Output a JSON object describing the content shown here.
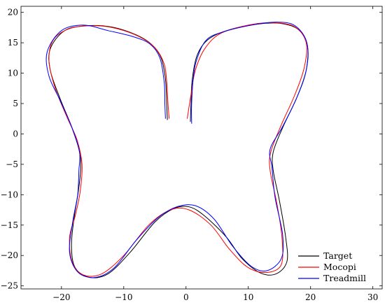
{
  "chart_data": {
    "type": "line",
    "title": "",
    "xlabel": "",
    "ylabel": "",
    "xlim": [
      -26.5,
      31.5
    ],
    "ylim": [
      -25.5,
      21
    ],
    "x_ticks": [
      -20,
      -10,
      0,
      10,
      20,
      30
    ],
    "y_ticks": [
      -25,
      -20,
      -15,
      -10,
      -5,
      0,
      5,
      10,
      15,
      20
    ],
    "x_tick_labels": [
      "−20",
      "−10",
      "0",
      "10",
      "20",
      "30"
    ],
    "y_tick_labels": [
      "−25",
      "−20",
      "−15",
      "−10",
      "−5",
      "0",
      "5",
      "10",
      "15",
      "20"
    ],
    "grid": false,
    "legend_position": "bottom-right",
    "series": [
      {
        "name": "Target",
        "color": "#000000",
        "points": [
          [
            -3.0,
            2.3
          ],
          [
            -3.1,
            5.0
          ],
          [
            -3.3,
            9.0
          ],
          [
            -4.0,
            12.5
          ],
          [
            -5.5,
            14.7
          ],
          [
            -8.0,
            16.3
          ],
          [
            -12.0,
            17.6
          ],
          [
            -16.0,
            17.8
          ],
          [
            -19.5,
            17.0
          ],
          [
            -21.8,
            14.0
          ],
          [
            -21.8,
            10.5
          ],
          [
            -20.3,
            6.0
          ],
          [
            -18.5,
            1.5
          ],
          [
            -17.2,
            -2.5
          ],
          [
            -16.9,
            -5.5
          ],
          [
            -17.3,
            -9.5
          ],
          [
            -18.0,
            -14.0
          ],
          [
            -18.4,
            -18.5
          ],
          [
            -17.8,
            -22.0
          ],
          [
            -15.5,
            -23.6
          ],
          [
            -12.5,
            -23.0
          ],
          [
            -9.0,
            -19.5
          ],
          [
            -5.0,
            -14.5
          ],
          [
            -2.0,
            -12.3
          ],
          [
            0.5,
            -12.0
          ],
          [
            3.0,
            -13.5
          ],
          [
            6.5,
            -17.0
          ],
          [
            9.0,
            -20.5
          ],
          [
            12.0,
            -22.9
          ],
          [
            14.5,
            -23.0
          ],
          [
            16.2,
            -21.0
          ],
          [
            16.0,
            -17.0
          ],
          [
            15.0,
            -11.0
          ],
          [
            14.0,
            -6.0
          ],
          [
            14.0,
            -3.0
          ],
          [
            15.5,
            1.0
          ],
          [
            17.8,
            6.0
          ],
          [
            19.3,
            10.5
          ],
          [
            19.5,
            14.5
          ],
          [
            18.0,
            17.2
          ],
          [
            15.0,
            18.2
          ],
          [
            11.0,
            18.0
          ],
          [
            6.5,
            17.0
          ],
          [
            3.5,
            15.5
          ],
          [
            1.8,
            13.0
          ],
          [
            1.0,
            9.0
          ],
          [
            0.8,
            5.0
          ],
          [
            0.7,
            2.0
          ]
        ]
      },
      {
        "name": "Mocopi",
        "color": "#ff0000",
        "points": [
          [
            -2.7,
            2.5
          ],
          [
            -2.9,
            5.0
          ],
          [
            -3.1,
            8.5
          ],
          [
            -3.5,
            11.5
          ],
          [
            -5.0,
            14.2
          ],
          [
            -7.5,
            16.0
          ],
          [
            -11.0,
            17.3
          ],
          [
            -14.5,
            17.8
          ],
          [
            -18.5,
            17.4
          ],
          [
            -21.3,
            15.5
          ],
          [
            -22.0,
            12.0
          ],
          [
            -21.0,
            7.5
          ],
          [
            -19.0,
            2.5
          ],
          [
            -17.5,
            -1.0
          ],
          [
            -16.7,
            -5.0
          ],
          [
            -17.0,
            -9.5
          ],
          [
            -17.8,
            -13.5
          ],
          [
            -18.7,
            -17.0
          ],
          [
            -18.3,
            -21.0
          ],
          [
            -16.5,
            -23.2
          ],
          [
            -13.5,
            -23.0
          ],
          [
            -10.0,
            -20.0
          ],
          [
            -6.0,
            -15.0
          ],
          [
            -2.5,
            -12.5
          ],
          [
            0.5,
            -12.5
          ],
          [
            4.0,
            -15.0
          ],
          [
            7.0,
            -19.0
          ],
          [
            10.0,
            -22.0
          ],
          [
            13.0,
            -22.8
          ],
          [
            15.3,
            -21.5
          ],
          [
            15.4,
            -17.0
          ],
          [
            14.6,
            -11.5
          ],
          [
            13.5,
            -6.0
          ],
          [
            13.6,
            -3.0
          ],
          [
            15.3,
            1.5
          ],
          [
            17.5,
            6.5
          ],
          [
            19.0,
            11.0
          ],
          [
            19.3,
            15.0
          ],
          [
            17.5,
            17.6
          ],
          [
            14.0,
            18.3
          ],
          [
            10.0,
            17.9
          ],
          [
            5.5,
            16.5
          ],
          [
            3.0,
            14.0
          ],
          [
            1.5,
            10.5
          ],
          [
            0.8,
            6.5
          ],
          [
            0.2,
            2.5
          ]
        ]
      },
      {
        "name": "Treadmill",
        "color": "#0000ff",
        "points": [
          [
            -3.3,
            2.5
          ],
          [
            -3.4,
            5.0
          ],
          [
            -3.5,
            8.5
          ],
          [
            -4.2,
            12.5
          ],
          [
            -5.8,
            14.8
          ],
          [
            -8.5,
            16.0
          ],
          [
            -12.5,
            17.0
          ],
          [
            -16.5,
            17.9
          ],
          [
            -20.0,
            17.0
          ],
          [
            -22.3,
            13.5
          ],
          [
            -22.0,
            9.5
          ],
          [
            -20.2,
            5.5
          ],
          [
            -18.3,
            1.0
          ],
          [
            -17.1,
            -3.0
          ],
          [
            -17.2,
            -6.0
          ],
          [
            -17.4,
            -10.0
          ],
          [
            -18.2,
            -14.5
          ],
          [
            -18.7,
            -19.5
          ],
          [
            -17.3,
            -22.8
          ],
          [
            -14.5,
            -23.6
          ],
          [
            -11.5,
            -22.0
          ],
          [
            -8.0,
            -17.5
          ],
          [
            -4.5,
            -13.8
          ],
          [
            -1.5,
            -12.0
          ],
          [
            1.5,
            -11.8
          ],
          [
            4.5,
            -14.0
          ],
          [
            7.5,
            -18.5
          ],
          [
            10.5,
            -21.8
          ],
          [
            13.0,
            -22.5
          ],
          [
            15.3,
            -20.5
          ],
          [
            15.5,
            -16.5
          ],
          [
            14.3,
            -10.5
          ],
          [
            13.8,
            -5.5
          ],
          [
            13.5,
            -2.5
          ],
          [
            15.5,
            1.2
          ],
          [
            17.8,
            6.0
          ],
          [
            19.3,
            10.5
          ],
          [
            19.4,
            15.0
          ],
          [
            17.5,
            17.8
          ],
          [
            14.5,
            18.4
          ],
          [
            10.5,
            17.9
          ],
          [
            6.0,
            16.8
          ],
          [
            3.3,
            15.5
          ],
          [
            1.8,
            12.5
          ],
          [
            1.2,
            9.5
          ],
          [
            0.9,
            5.0
          ],
          [
            0.9,
            1.7
          ]
        ]
      }
    ]
  }
}
